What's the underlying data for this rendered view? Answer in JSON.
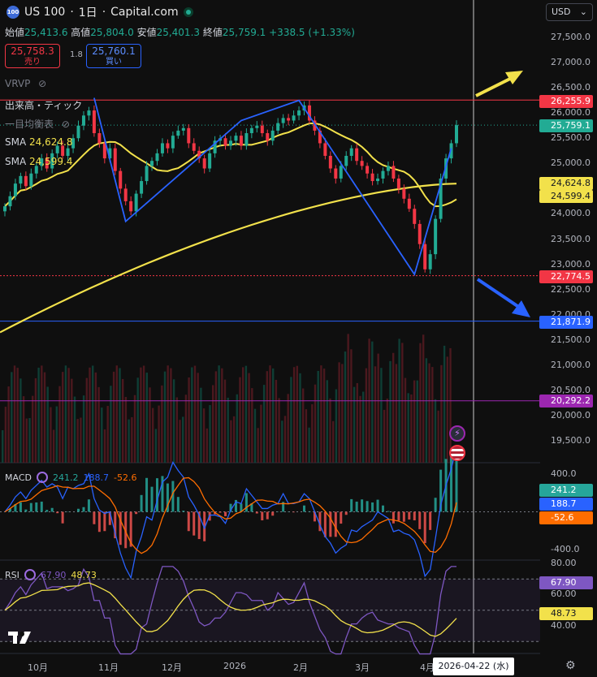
{
  "header": {
    "symbol": "US 100",
    "interval": "1日",
    "source": "Capital.com",
    "logo_text": "100"
  },
  "ohlc": {
    "open_label": "始値",
    "open": "25,413.6",
    "high_label": "高値",
    "high": "25,804.0",
    "low_label": "安値",
    "low": "25,401.3",
    "close_label": "終値",
    "close": "25,759.1",
    "change": "+338.5 (+1.33%)"
  },
  "trade": {
    "sell_price": "25,758.3",
    "sell_label": "売り",
    "buy_price": "25,760.1",
    "buy_label": "買い",
    "spread": "1.8"
  },
  "indicators": {
    "vrvp": "VRVP",
    "volume_tick": "出来高・ティック",
    "ichimoku": "一目均衡表",
    "sma1_label": "SMA",
    "sma1_value": "24,624.8",
    "sma2_label": "SMA",
    "sma2_value": "24,599.4",
    "macd_label": "MACD",
    "macd_values": [
      "241.2",
      "188.7",
      "-52.6"
    ],
    "rsi_label": "RSI",
    "rsi_values": [
      "67.90",
      "48.73"
    ]
  },
  "currency": "USD",
  "price_tags": {
    "top_resistance": "26,255.9",
    "last": "25,759.1",
    "sma1": "24,624.8",
    "sma2": "24,599.4",
    "support1": "22,774.5",
    "support2": "21,871.9",
    "vol_line": "20,292.2",
    "macd1": "241.2",
    "macd2": "188.7",
    "macd3": "-52.6",
    "rsi1": "67.90",
    "rsi2": "48.73"
  },
  "colors": {
    "up": "#22ab94",
    "down": "#f23645",
    "sma": "#f2e14b",
    "pattern": "#2962ff",
    "resistance": "#f23645",
    "support": "#2962ff",
    "vol_line": "#9c27b0",
    "rsi": "#7e57c2"
  },
  "chart_data": [
    {
      "type": "candlestick",
      "title": "US 100・1日・Capital.com",
      "ylim": [
        19000,
        28000
      ],
      "y_ticks": [
        "27,500.0",
        "27,000.0",
        "26,500.0",
        "26,000.0",
        "25,500.0",
        "25,000.0",
        "24,500.0",
        "24,000.0",
        "23,500.0",
        "23,000.0",
        "22,500.0",
        "22,000.0",
        "21,500.0",
        "21,000.0",
        "20,500.0",
        "20,000.0",
        "19,500.0"
      ],
      "x_labels": [
        "10月",
        "11月",
        "12月",
        "2026",
        "2月",
        "3月",
        "4月"
      ],
      "crosshair_date": "2026-04-22 (水)",
      "close_series": [
        24150,
        24350,
        24600,
        24750,
        24550,
        24800,
        24950,
        25100,
        24900,
        25200,
        25350,
        25150,
        25300,
        25500,
        25750,
        25950,
        26050,
        25600,
        25400,
        25100,
        25300,
        24850,
        24500,
        24250,
        24050,
        24400,
        24650,
        24950,
        25050,
        25200,
        25400,
        25300,
        25550,
        25650,
        25700,
        25400,
        25250,
        25100,
        24900,
        25200,
        25450,
        25500,
        25350,
        25450,
        25550,
        25350,
        25600,
        25700,
        25750,
        25600,
        25450,
        25650,
        25800,
        25900,
        25850,
        25950,
        26050,
        26150,
        25850,
        25650,
        25400,
        25150,
        24900,
        24700,
        24950,
        25150,
        25300,
        25050,
        24950,
        24800,
        24650,
        24700,
        24850,
        24950,
        24700,
        24500,
        24300,
        24100,
        23800,
        23400,
        22900,
        23200,
        23900,
        24700,
        25100,
        25400,
        25759.1
      ],
      "sma_fast": {
        "name": "SMA",
        "last": 24624.8
      },
      "sma_slow": {
        "name": "SMA",
        "last": 24599.4
      },
      "pattern_points": [
        [
          0.0,
          0
        ],
        [
          17,
          26300
        ],
        [
          23,
          23850
        ],
        [
          45,
          25850
        ],
        [
          56,
          26250
        ],
        [
          78,
          22800
        ],
        [
          85,
          25300
        ]
      ],
      "horizontal_levels": [
        26255.9,
        22774.5,
        21871.9,
        20292.2
      ],
      "last_price": 25759.1
    },
    {
      "type": "bar",
      "title": "MACD",
      "ylim": [
        -400,
        400
      ],
      "y_ticks": [
        "400.0",
        "-400.0"
      ],
      "series": [
        {
          "name": "MACD",
          "last": 241.2
        },
        {
          "name": "Signal",
          "last": 188.7
        },
        {
          "name": "Histogram",
          "last": -52.6
        }
      ]
    },
    {
      "type": "line",
      "title": "RSI",
      "ylim": [
        20,
        80
      ],
      "y_ticks": [
        "80.00",
        "60.00",
        "40.00"
      ],
      "series": [
        {
          "name": "RSI",
          "last": 67.9
        },
        {
          "name": "RSI MA",
          "last": 48.73
        }
      ]
    }
  ]
}
